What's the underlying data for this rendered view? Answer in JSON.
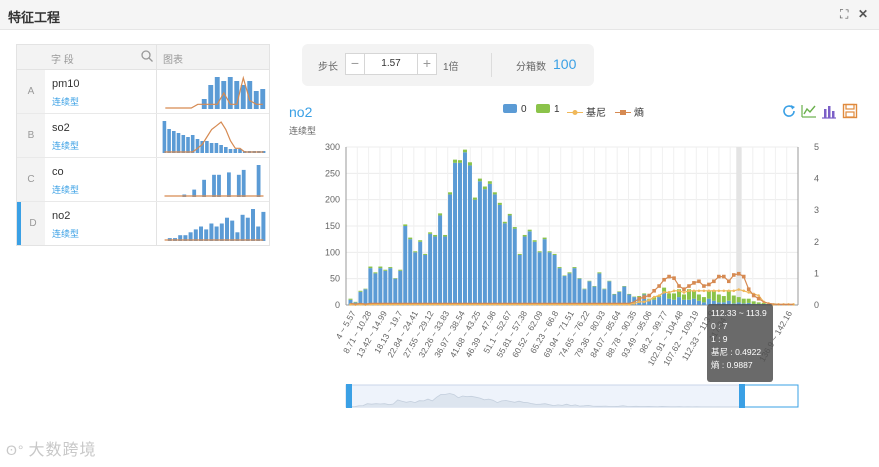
{
  "window": {
    "title": "特征工程"
  },
  "feature_table": {
    "col_field": "字 段",
    "col_chart": "图表",
    "rows": [
      {
        "letter": "A",
        "name": "pm10",
        "type": "连续型",
        "selected": false,
        "bars": [
          0,
          0,
          0,
          0,
          0,
          0,
          5,
          12,
          16,
          14,
          16,
          14,
          12,
          14,
          9,
          10
        ],
        "line": [
          0,
          0,
          0,
          0,
          0,
          1,
          1,
          1,
          1,
          4,
          1,
          1,
          8,
          2,
          1,
          1
        ]
      },
      {
        "letter": "B",
        "name": "so2",
        "type": "连续型",
        "selected": false,
        "bars": [
          16,
          12,
          11,
          10,
          9,
          8,
          9,
          7,
          6,
          6,
          5,
          5,
          4,
          3,
          2,
          2,
          2,
          1,
          1,
          1,
          1,
          1
        ],
        "line": [
          0,
          0,
          0,
          0,
          0,
          0,
          0,
          1,
          2,
          4,
          6,
          7,
          8,
          6,
          3,
          1,
          1,
          0,
          0,
          0,
          0,
          0
        ]
      },
      {
        "letter": "C",
        "name": "co",
        "type": "连续型",
        "selected": false,
        "bars": [
          0,
          0,
          0,
          0,
          1,
          0,
          3,
          0,
          7,
          0,
          9,
          9,
          0,
          10,
          0,
          9,
          11,
          0,
          0,
          13,
          0
        ],
        "line": [
          0,
          0,
          0,
          0,
          0,
          0,
          0,
          0,
          0,
          0,
          0,
          0,
          0,
          0,
          0,
          0,
          0,
          0,
          0,
          0,
          0
        ]
      },
      {
        "letter": "D",
        "name": "no2",
        "type": "连续型",
        "selected": true,
        "bars": [
          0,
          1,
          1,
          2,
          2,
          3,
          4,
          5,
          4,
          6,
          5,
          6,
          8,
          7,
          3,
          9,
          8,
          11,
          5,
          10
        ],
        "line": [
          0,
          0,
          0,
          0,
          0,
          0,
          0,
          0,
          0,
          0,
          0,
          0,
          0,
          0,
          0,
          0,
          0,
          0,
          0,
          0
        ]
      }
    ]
  },
  "controls": {
    "step_label": "步长",
    "step_value": "1.57",
    "multiplier": "1倍",
    "bins_label": "分箱数",
    "bins_value": "100"
  },
  "chart_header": {
    "title": "no2",
    "subtitle": "连续型"
  },
  "toolbar_icons": [
    "refresh-icon",
    "line-chart-icon",
    "bar-chart-icon",
    "save-icon"
  ],
  "colors": {
    "series0": "#5b9bd5",
    "series1": "#8bc34a",
    "gini": "#f0b85a",
    "entropy": "#d68a52",
    "accent": "#3aa0e5"
  },
  "tooltip": {
    "range": "112.33 ~ 113.9",
    "l0": "0 : 7",
    "l1": "1 : 9",
    "gini": "基尼 : 0.4922",
    "entropy": "熵 : 0.9887"
  },
  "watermark": "大数跨境",
  "chart_data": {
    "type": "bar",
    "title": "no2",
    "legend": [
      "0",
      "1",
      "基尼",
      "熵"
    ],
    "legend_placement": "top-center",
    "ylim_left": [
      0,
      300
    ],
    "ylim_right": [
      0,
      5
    ],
    "yticks_left": [
      "0",
      "50",
      "100",
      "150",
      "200",
      "250",
      "300"
    ],
    "yticks_right": [
      "0",
      "1",
      "2",
      "3",
      "4",
      "5"
    ],
    "grid": true,
    "xtick_labels": [
      "4 ~ 5.57",
      "8.71 ~ 10.28",
      "13.42 ~ 14.99",
      "18.13 ~ 19.7",
      "22.84 ~ 24.41",
      "27.55 ~ 29.12",
      "32.26 ~ 33.83",
      "36.97 ~ 38.54",
      "41.68 ~ 43.25",
      "46.39 ~ 47.96",
      "51.1 ~ 52.67",
      "55.81 ~ 57.38",
      "60.52 ~ 62.09",
      "65.23 ~ 66.8",
      "69.94 ~ 71.51",
      "74.65 ~ 76.22",
      "79.36 ~ 80.93",
      "84.07 ~ 85.64",
      "88.78 ~ 90.35",
      "93.49 ~ 95.06",
      "98.2 ~ 99.77",
      "102.91 ~ 104.48",
      "107.62 ~ 109.19",
      "112.33 ~ 113.9",
      "117.04 ~ ",
      "",
      "",
      "",
      "136.9 ~ 142.16"
    ],
    "series": [
      {
        "name": "0",
        "values": [
          10,
          5,
          25,
          30,
          70,
          60,
          70,
          65,
          70,
          50,
          65,
          150,
          125,
          100,
          120,
          95,
          135,
          130,
          170,
          130,
          210,
          270,
          270,
          290,
          265,
          200,
          235,
          220,
          230,
          210,
          190,
          155,
          170,
          145,
          95,
          130,
          140,
          120,
          100,
          125,
          100,
          95,
          70,
          55,
          60,
          70,
          50,
          30,
          45,
          35,
          60,
          30,
          45,
          20,
          25,
          35,
          20,
          15,
          15,
          20,
          10,
          10,
          15,
          25,
          12,
          10,
          15,
          10,
          10,
          12,
          8,
          5,
          12,
          8,
          5,
          5,
          8,
          3,
          5,
          3,
          4,
          2,
          2,
          2,
          1,
          2,
          1,
          1,
          1,
          1
        ]
      },
      {
        "name": "1",
        "values": [
          2,
          1,
          2,
          1,
          3,
          2,
          3,
          2,
          2,
          1,
          2,
          3,
          3,
          2,
          3,
          2,
          3,
          3,
          4,
          3,
          4,
          6,
          5,
          5,
          6,
          4,
          5,
          5,
          5,
          4,
          4,
          3,
          3,
          3,
          2,
          3,
          3,
          3,
          2,
          3,
          2,
          2,
          2,
          1,
          2,
          2,
          1,
          1,
          1,
          1,
          2,
          1,
          1,
          1,
          1,
          1,
          1,
          1,
          2,
          2,
          2,
          5,
          3,
          8,
          10,
          12,
          15,
          10,
          20,
          15,
          12,
          10,
          15,
          20,
          15,
          12,
          20,
          15,
          10,
          9,
          8,
          5,
          3,
          2,
          1,
          1,
          1,
          1,
          0,
          0
        ]
      },
      {
        "name": "基尼",
        "values": [
          0.02,
          0.01,
          0.02,
          0.01,
          0.02,
          0.02,
          0.02,
          0.02,
          0.02,
          0.02,
          0.02,
          0.02,
          0.02,
          0.02,
          0.02,
          0.02,
          0.02,
          0.02,
          0.02,
          0.02,
          0.02,
          0.02,
          0.02,
          0.02,
          0.02,
          0.02,
          0.02,
          0.02,
          0.02,
          0.02,
          0.02,
          0.02,
          0.02,
          0.02,
          0.02,
          0.02,
          0.02,
          0.02,
          0.02,
          0.02,
          0.02,
          0.02,
          0.02,
          0.02,
          0.02,
          0.02,
          0.02,
          0.02,
          0.02,
          0.02,
          0.02,
          0.02,
          0.02,
          0.02,
          0.02,
          0.02,
          0.02,
          0.05,
          0.1,
          0.1,
          0.15,
          0.25,
          0.3,
          0.4,
          0.4,
          0.45,
          0.45,
          0.4,
          0.45,
          0.45,
          0.45,
          0.45,
          0.45,
          0.45,
          0.45,
          0.45,
          0.45,
          0.45,
          0.49,
          0.45,
          0.4,
          0.35,
          0.3,
          0.1,
          0.05,
          0.02,
          0.02,
          0.02,
          0.02,
          0.02
        ]
      },
      {
        "name": "熵",
        "values": [
          0.05,
          0.03,
          0.05,
          0.03,
          0.05,
          0.05,
          0.05,
          0.05,
          0.05,
          0.05,
          0.05,
          0.05,
          0.05,
          0.05,
          0.05,
          0.05,
          0.05,
          0.05,
          0.05,
          0.05,
          0.05,
          0.05,
          0.05,
          0.05,
          0.05,
          0.05,
          0.05,
          0.05,
          0.05,
          0.05,
          0.05,
          0.05,
          0.05,
          0.05,
          0.05,
          0.05,
          0.05,
          0.05,
          0.05,
          0.05,
          0.05,
          0.05,
          0.05,
          0.05,
          0.05,
          0.05,
          0.05,
          0.05,
          0.05,
          0.05,
          0.05,
          0.05,
          0.05,
          0.05,
          0.05,
          0.05,
          0.05,
          0.1,
          0.2,
          0.25,
          0.3,
          0.45,
          0.6,
          0.8,
          0.9,
          0.85,
          0.6,
          0.5,
          0.6,
          0.7,
          0.75,
          0.6,
          0.65,
          0.75,
          0.9,
          0.9,
          0.75,
          0.95,
          0.99,
          0.9,
          0.5,
          0.3,
          0.2,
          0.1,
          0.05,
          0.03,
          0.02,
          0.02,
          0.02,
          0.02
        ]
      }
    ]
  }
}
